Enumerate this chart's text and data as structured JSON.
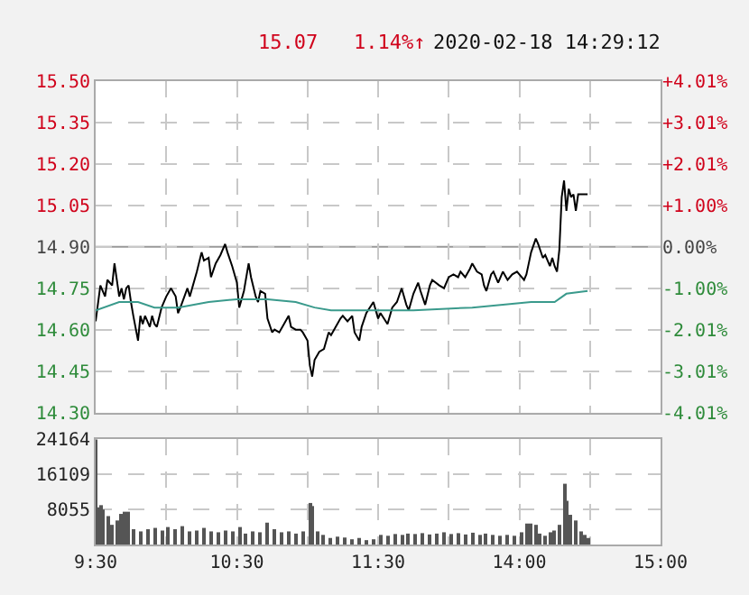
{
  "chart_data": [
    {
      "type": "line",
      "annotations": [
        "15.07",
        "1.14%↑",
        "2020-02-18 14:29:12"
      ],
      "categories": [
        null,
        null,
        null,
        null,
        null,
        null,
        null,
        null,
        null,
        null,
        null,
        null,
        null,
        null,
        null,
        null,
        null,
        null,
        null,
        null,
        null,
        null,
        null,
        null,
        null,
        null,
        null,
        null,
        null,
        null,
        null,
        null,
        null,
        null,
        null,
        null,
        null,
        null,
        null,
        null,
        null,
        null,
        null,
        null,
        null,
        null,
        null,
        null,
        null,
        null,
        null,
        null,
        null,
        null,
        null,
        null,
        null,
        null,
        null,
        null,
        null,
        null,
        null,
        null,
        null,
        null,
        null,
        null,
        null,
        null,
        null,
        null,
        null,
        null,
        null,
        null,
        null,
        null,
        null,
        null,
        null,
        null,
        null,
        null,
        null,
        null,
        null,
        null,
        null,
        null,
        null,
        null,
        null,
        null,
        null,
        null,
        null,
        null,
        null,
        null,
        null,
        null,
        null,
        null,
        null,
        null,
        null,
        null,
        null,
        null,
        null,
        null,
        null,
        null,
        null,
        null,
        null,
        null,
        null,
        null,
        null,
        null,
        null,
        null,
        null,
        null,
        null,
        null,
        null,
        null,
        null,
        null,
        null,
        null,
        null,
        null,
        null,
        null,
        null,
        null,
        null,
        null,
        null,
        null,
        null,
        null,
        null,
        null,
        null,
        null,
        null,
        null,
        null,
        null,
        null,
        null,
        null,
        null,
        null,
        null,
        null,
        null,
        null,
        null,
        null,
        null,
        null,
        null,
        null,
        null,
        null,
        null,
        null,
        null,
        null,
        null,
        null,
        null,
        null,
        null,
        null,
        null,
        null,
        null,
        null,
        null,
        null,
        null,
        null,
        null,
        null,
        null,
        null,
        null,
        null,
        null,
        null,
        null,
        null,
        null,
        null,
        null,
        null,
        null,
        null,
        null,
        null,
        null,
        null,
        null,
        null,
        null,
        null,
        null,
        null,
        null,
        null,
        null,
        null,
        null,
        null,
        null,
        null,
        null,
        null,
        null,
        null,
        null,
        null,
        null,
        null,
        null,
        null,
        null,
        null,
        null,
        null,
        null,
        null,
        null,
        null
      ],
      "series": [
        {
          "color": "#000000",
          "values": [
            14.63,
            null,
            14.76,
            null,
            14.72,
            14.78,
            null,
            14.76,
            14.84,
            null,
            14.72,
            14.75,
            14.71,
            14.75,
            14.76,
            14.7,
            14.65,
            null,
            14.56,
            14.65,
            14.62,
            14.65,
            null,
            14.61,
            14.65,
            14.62,
            14.61,
            null,
            14.68,
            null,
            14.72,
            null,
            14.75,
            null,
            14.72,
            14.66,
            14.68,
            null,
            null,
            14.75,
            14.72,
            null,
            null,
            14.81,
            null,
            14.88,
            14.85,
            null,
            14.86,
            14.79,
            null,
            14.84,
            null,
            14.87,
            null,
            14.91,
            14.88,
            null,
            14.83,
            null,
            14.77,
            14.68,
            null,
            14.74,
            null,
            14.84,
            14.79,
            null,
            14.72,
            14.7,
            14.74,
            null,
            14.73,
            14.64,
            null,
            14.59,
            14.6,
            null,
            14.59,
            null,
            14.62,
            null,
            14.65,
            14.61,
            null,
            14.6,
            null,
            14.6,
            14.59,
            null,
            14.56,
            14.47,
            14.43,
            14.49,
            null,
            14.52,
            null,
            14.53,
            null,
            14.59,
            14.58,
            null,
            14.61,
            null,
            14.64,
            14.65,
            null,
            14.63,
            null,
            14.65,
            14.59,
            null,
            14.56,
            14.61,
            null,
            14.66,
            null,
            null,
            14.7,
            null,
            14.64,
            14.66,
            null,
            null,
            14.62,
            null,
            14.68,
            null,
            14.7,
            null,
            14.75,
            null,
            14.69,
            14.67,
            null,
            14.73,
            null,
            14.77,
            14.74,
            null,
            14.69,
            null,
            14.76,
            14.78,
            null,
            null,
            14.76,
            null,
            14.75,
            null,
            14.79,
            null,
            14.8,
            null,
            14.79,
            14.81,
            null,
            14.79,
            null,
            14.82,
            14.84,
            null,
            14.81,
            null,
            14.8,
            14.76,
            14.74,
            null,
            14.8,
            14.81,
            null,
            14.77,
            null,
            14.81,
            null,
            14.78,
            null,
            14.8,
            null,
            14.81,
            null,
            14.79,
            14.78,
            14.8,
            14.84,
            14.88,
            null,
            14.93,
            14.91,
            null,
            14.86,
            14.87,
            null,
            14.83,
            14.86,
            14.83,
            14.81,
            14.89,
            15.08,
            15.14,
            15.03,
            15.11,
            15.08,
            15.09,
            15.03,
            15.09,
            null,
            15.09,
            null,
            15.09,
            null,
            null,
            null,
            null,
            null,
            null,
            null,
            null,
            null,
            null,
            null,
            null,
            null,
            null,
            null,
            null,
            null,
            null,
            null,
            null,
            null,
            null,
            null,
            null,
            null,
            null,
            null,
            null,
            null,
            null,
            null
          ]
        },
        {
          "color": "#3a9a8c",
          "values": [
            14.67,
            null,
            null,
            null,
            null,
            null,
            null,
            null,
            null,
            null,
            14.7,
            null,
            null,
            null,
            null,
            null,
            null,
            null,
            14.7,
            null,
            null,
            null,
            null,
            null,
            null,
            14.68,
            null,
            null,
            null,
            null,
            null,
            null,
            null,
            null,
            null,
            14.68,
            null,
            null,
            null,
            null,
            null,
            null,
            null,
            null,
            null,
            null,
            null,
            null,
            14.7,
            null,
            null,
            null,
            null,
            null,
            null,
            null,
            null,
            null,
            null,
            null,
            14.71,
            null,
            null,
            null,
            null,
            null,
            null,
            null,
            null,
            null,
            null,
            null,
            null,
            14.71,
            null,
            null,
            null,
            null,
            null,
            null,
            null,
            null,
            null,
            null,
            null,
            14.7,
            null,
            null,
            null,
            null,
            null,
            null,
            null,
            14.68,
            null,
            null,
            null,
            null,
            null,
            null,
            14.67,
            null,
            null,
            null,
            null,
            null,
            null,
            null,
            null,
            null,
            null,
            null,
            null,
            null,
            null,
            null,
            null,
            null,
            14.67,
            null,
            null,
            null,
            null,
            null,
            null,
            null,
            null,
            null,
            null,
            null,
            null,
            null,
            null,
            null,
            null,
            14.67,
            null,
            null,
            null,
            null,
            null,
            null,
            null,
            null,
            null,
            null,
            null,
            null,
            null,
            null,
            null,
            null,
            null,
            null,
            null,
            null,
            null,
            null,
            null,
            null,
            14.68,
            null,
            null,
            null,
            null,
            null,
            null,
            null,
            null,
            null,
            null,
            null,
            null,
            null,
            null,
            null,
            null,
            null,
            null,
            null,
            null,
            null,
            null,
            null,
            null,
            14.7,
            null,
            null,
            null,
            null,
            null,
            null,
            null,
            null,
            null,
            14.7,
            null,
            null,
            null,
            null,
            14.73,
            null,
            null,
            null,
            null,
            null,
            null,
            null,
            null,
            14.74,
            null,
            null,
            null,
            null,
            null,
            null,
            null,
            null,
            null,
            null,
            null,
            null,
            null,
            null,
            null,
            null,
            null,
            null,
            null,
            null,
            null,
            null,
            null,
            null,
            null,
            null,
            null,
            null,
            null,
            null,
            null
          ]
        }
      ],
      "ylim": [
        14.3,
        15.5
      ],
      "yticks": [
        {
          "value": 14.3,
          "label": "14.30"
        },
        {
          "value": 14.45,
          "label": "14.45"
        },
        {
          "value": 14.6,
          "label": "14.60"
        },
        {
          "value": 14.75,
          "label": "14.75"
        },
        {
          "value": 14.9,
          "label": "14.90"
        },
        {
          "value": 15.05,
          "label": "15.05"
        },
        {
          "value": 15.2,
          "label": "15.20"
        },
        {
          "value": 15.35,
          "label": "15.35"
        },
        {
          "value": 15.5,
          "label": "15.50"
        }
      ],
      "y2lim": [
        -4.01,
        4.01
      ],
      "y2ticks": [
        {
          "value": -4.01,
          "label": "-4.01%"
        },
        {
          "value": -3.01,
          "label": "-3.01%"
        },
        {
          "value": -2.01,
          "label": "-2.01%"
        },
        {
          "value": -1.0,
          "label": "-1.00%"
        },
        {
          "value": 0,
          "label": "0.00%"
        },
        {
          "value": 1.0,
          "label": "+1.00%"
        },
        {
          "value": 2.01,
          "label": "+2.01%"
        },
        {
          "value": 3.01,
          "label": "+3.01%"
        },
        {
          "value": 4.01,
          "label": "+4.01%"
        }
      ],
      "ref_lines": [
        {
          "axis": "y",
          "value": 14.9,
          "color": "#999999"
        }
      ],
      "grid": true,
      "tick_labels": "y"
    },
    {
      "type": "bar",
      "color": "#555555",
      "categories": [
        "9:30",
        null,
        null,
        null,
        null,
        null,
        null,
        null,
        null,
        null,
        null,
        null,
        null,
        null,
        null,
        null,
        null,
        null,
        null,
        null,
        null,
        null,
        null,
        null,
        null,
        null,
        null,
        null,
        null,
        null,
        null,
        null,
        null,
        null,
        null,
        null,
        null,
        null,
        null,
        null,
        null,
        null,
        null,
        null,
        null,
        null,
        null,
        null,
        null,
        null,
        null,
        null,
        null,
        null,
        null,
        null,
        null,
        null,
        null,
        null,
        "10:30",
        null,
        null,
        null,
        null,
        null,
        null,
        null,
        null,
        null,
        null,
        null,
        null,
        null,
        null,
        null,
        null,
        null,
        null,
        null,
        null,
        null,
        null,
        null,
        null,
        null,
        null,
        null,
        null,
        null,
        null,
        null,
        null,
        null,
        null,
        null,
        null,
        null,
        null,
        null,
        null,
        null,
        null,
        null,
        null,
        null,
        null,
        null,
        null,
        null,
        null,
        null,
        null,
        null,
        null,
        null,
        null,
        null,
        null,
        null,
        "11:30",
        null,
        null,
        null,
        null,
        null,
        null,
        null,
        null,
        null,
        null,
        null,
        null,
        null,
        null,
        null,
        null,
        null,
        null,
        null,
        null,
        null,
        null,
        null,
        null,
        null,
        null,
        null,
        null,
        null,
        null,
        null,
        null,
        null,
        null,
        null,
        null,
        null,
        null,
        null,
        null,
        null,
        null,
        null,
        null,
        null,
        null,
        null,
        null,
        null,
        null,
        null,
        null,
        null,
        null,
        null,
        null,
        null,
        null,
        null,
        "14:00",
        null,
        null,
        null,
        null,
        null,
        null,
        null,
        null,
        null,
        null,
        null,
        null,
        null,
        null,
        null,
        null,
        null,
        null,
        null,
        null,
        null,
        null,
        null,
        null,
        null,
        null,
        null,
        null,
        null,
        null,
        null,
        null,
        null,
        null,
        null,
        null,
        null,
        null,
        null,
        null,
        null,
        null,
        null,
        null,
        null,
        null,
        null,
        null,
        null,
        null,
        null,
        null,
        null,
        null,
        null,
        null,
        null,
        null,
        null,
        "15:00"
      ],
      "values": [
        24000,
        8500,
        9000,
        8000,
        null,
        6500,
        null,
        4500,
        null,
        5500,
        null,
        7000,
        7500,
        null,
        7500,
        null,
        3500,
        null,
        null,
        3000,
        null,
        null,
        3500,
        null,
        null,
        3800,
        null,
        null,
        3200,
        null,
        null,
        4000,
        null,
        null,
        3500,
        null,
        null,
        4200,
        null,
        null,
        3000,
        null,
        null,
        3200,
        null,
        null,
        3800,
        null,
        null,
        3000,
        null,
        null,
        2800,
        null,
        null,
        3200,
        null,
        null,
        3000,
        null,
        null,
        4000,
        null,
        null,
        2500,
        null,
        null,
        3000,
        null,
        null,
        2800,
        null,
        null,
        5000,
        null,
        null,
        3500,
        null,
        null,
        2800,
        null,
        null,
        3000,
        null,
        null,
        2500,
        null,
        null,
        3000,
        null,
        null,
        9500,
        8800,
        null,
        3000,
        null,
        null,
        2200,
        null,
        null,
        1500,
        null,
        null,
        1800,
        null,
        null,
        1600,
        null,
        null,
        1200,
        null,
        null,
        1500,
        null,
        null,
        1000,
        null,
        null,
        1200,
        null,
        null,
        2200,
        null,
        null,
        2000,
        null,
        null,
        2400,
        null,
        null,
        2200,
        null,
        null,
        2500,
        null,
        null,
        2400,
        null,
        null,
        2600,
        null,
        null,
        2300,
        null,
        null,
        2500,
        null,
        null,
        2800,
        null,
        null,
        2400,
        null,
        null,
        2600,
        null,
        null,
        2300,
        null,
        null,
        2700,
        null,
        null,
        2200,
        null,
        null,
        2500,
        null,
        null,
        2200,
        null,
        null,
        2000,
        null,
        null,
        2200,
        null,
        null,
        2000,
        null,
        null,
        2800,
        null,
        4800,
        null,
        4800,
        null,
        4500,
        null,
        2500,
        null,
        2000,
        null,
        2800,
        null,
        3200,
        null,
        4500,
        null,
        13900,
        10000,
        null,
        6800,
        null,
        5500,
        null,
        3000,
        null,
        2200,
        1500,
        null,
        null,
        null,
        null,
        null,
        null,
        null,
        null,
        null,
        null,
        null,
        null,
        null,
        null,
        null,
        null,
        null,
        null,
        null,
        null,
        null,
        null,
        null,
        null,
        null,
        null,
        null,
        null,
        null,
        null,
        null
      ],
      "ylim": [
        0,
        24164
      ],
      "yticks": [
        8055,
        16109,
        24164
      ],
      "grid": true
    }
  ]
}
